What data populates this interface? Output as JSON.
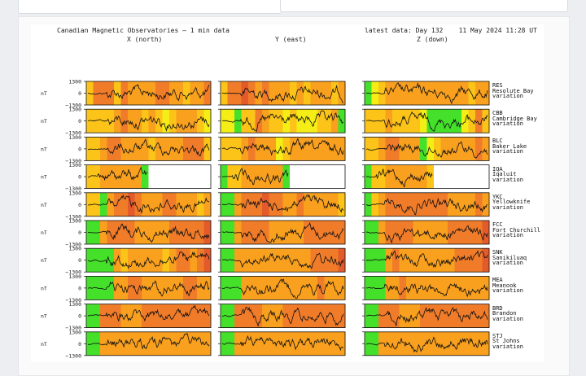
{
  "header": {
    "title": "Canadian Magnetic Observatories – 1 min data",
    "latest": "latest data: Day 132    11 May 2024 11:28 UT"
  },
  "columns": [
    "X (north)",
    "Y (east)",
    "Z (down)"
  ],
  "axis": {
    "unit": "nT",
    "top_tick": "1300",
    "mid_tick": "0",
    "bottom_tick": "−1300"
  },
  "colors": {
    "quiet": "#44e02a",
    "unsettled": "#f4ee16",
    "active": "#fcc418",
    "minor_storm": "#f9a01e",
    "major_storm": "#f07c2a",
    "severe_storm": "#e35b2b",
    "no_data": "#ffffff",
    "trace": "#111111"
  },
  "stations": [
    {
      "code": "RES",
      "name": "Resolute Bay",
      "suffix": "variation"
    },
    {
      "code": "CBB",
      "name": "Cambridge Bay",
      "suffix": "variation"
    },
    {
      "code": "BLC",
      "name": "Baker Lake",
      "suffix": "variation"
    },
    {
      "code": "IQA",
      "name": "Iqaluit",
      "suffix": "variation"
    },
    {
      "code": "YKC",
      "name": "Yellowknife",
      "suffix": "variation"
    },
    {
      "code": "FCC",
      "name": "Fort Churchill",
      "suffix": "variation"
    },
    {
      "code": "SNK",
      "name": "Sanikiluaq",
      "suffix": "variation"
    },
    {
      "code": "MEA",
      "name": "Meanook",
      "suffix": "variation"
    },
    {
      "code": "BRD",
      "name": "Brandon",
      "suffix": "variation"
    },
    {
      "code": "STJ",
      "name": "St Johns",
      "suffix": "variation"
    }
  ],
  "chart_data": {
    "type": "line",
    "title": "Canadian Magnetic Observatories – 1 min data",
    "series_components": [
      "X (north)",
      "Y (east)",
      "Z (down)"
    ],
    "ylabel": "nT",
    "ylim": [
      -1300,
      1300
    ],
    "yticks": [
      1300,
      0,
      -1300
    ],
    "activity_levels": [
      "quiet",
      "unsettled",
      "active",
      "minor_storm",
      "major_storm",
      "severe_storm",
      "no_data"
    ],
    "activity_strips": [
      [
        [
          "active",
          "major_storm",
          "major_storm",
          "major_storm",
          "active",
          "major_storm",
          "minor_storm",
          "minor_storm",
          "minor_storm",
          "minor_storm",
          "major_storm",
          "major_storm",
          "minor_storm",
          "minor_storm",
          "active",
          "minor_storm",
          "minor_storm",
          "major_storm"
        ],
        [
          "active",
          "major_storm",
          "major_storm",
          "severe_storm",
          "major_storm",
          "minor_storm",
          "major_storm",
          "minor_storm",
          "minor_storm",
          "minor_storm",
          "active",
          "minor_storm",
          "active",
          "minor_storm",
          "minor_storm",
          "minor_storm",
          "active",
          "minor_storm"
        ],
        [
          "quiet",
          "unsettled",
          "active",
          "minor_storm",
          "minor_storm",
          "minor_storm",
          "minor_storm",
          "minor_storm",
          "minor_storm",
          "minor_storm",
          "minor_storm",
          "minor_storm",
          "minor_storm",
          "minor_storm",
          "minor_storm",
          "active",
          "minor_storm",
          "minor_storm"
        ]
      ],
      [
        [
          "active",
          "active",
          "active",
          "active",
          "minor_storm",
          "major_storm",
          "minor_storm",
          "minor_storm",
          "active",
          "minor_storm",
          "active",
          "unsettled",
          "active",
          "minor_storm",
          "minor_storm",
          "minor_storm",
          "active",
          "unsettled"
        ],
        [
          "unsettled",
          "unsettled",
          "quiet",
          "active",
          "active",
          "major_storm",
          "minor_storm",
          "active",
          "active",
          "unsettled",
          "active",
          "unsettled",
          "unsettled",
          "unsettled",
          "active",
          "active",
          "minor_storm",
          "quiet"
        ],
        [
          "active",
          "active",
          "active",
          "minor_storm",
          "active",
          "active",
          "active",
          "active",
          "unsettled",
          "quiet",
          "quiet",
          "quiet",
          "quiet",
          "quiet",
          "unsettled",
          "active",
          "major_storm",
          "active"
        ]
      ],
      [
        [
          "active",
          "active",
          "minor_storm",
          "major_storm",
          "major_storm",
          "minor_storm",
          "minor_storm",
          "minor_storm",
          "minor_storm",
          "active",
          "minor_storm",
          "minor_storm",
          "minor_storm",
          "minor_storm",
          "major_storm",
          "major_storm",
          "major_storm",
          "active"
        ],
        [
          "active",
          "active",
          "active",
          "minor_storm",
          "major_storm",
          "minor_storm",
          "minor_storm",
          "minor_storm",
          "unsettled",
          "active",
          "minor_storm",
          "minor_storm",
          "minor_storm",
          "minor_storm",
          "minor_storm",
          "minor_storm",
          "minor_storm",
          "minor_storm"
        ],
        [
          "active",
          "active",
          "minor_storm",
          "major_storm",
          "major_storm",
          "minor_storm",
          "minor_storm",
          "minor_storm",
          "quiet",
          "unsettled",
          "active",
          "minor_storm",
          "minor_storm",
          "minor_storm",
          "minor_storm",
          "minor_storm",
          "major_storm",
          "minor_storm"
        ]
      ],
      [
        [
          "active",
          "active",
          "minor_storm",
          "minor_storm",
          "minor_storm",
          "minor_storm",
          "minor_storm",
          "minor_storm",
          "quiet",
          "no_data",
          "no_data",
          "no_data",
          "no_data",
          "no_data",
          "no_data",
          "no_data",
          "no_data",
          "no_data"
        ],
        [
          "quiet",
          "active",
          "active",
          "minor_storm",
          "minor_storm",
          "minor_storm",
          "minor_storm",
          "minor_storm",
          "minor_storm",
          "quiet",
          "no_data",
          "no_data",
          "no_data",
          "no_data",
          "no_data",
          "no_data",
          "no_data",
          "no_data"
        ],
        [
          "quiet",
          "active",
          "active",
          "minor_storm",
          "minor_storm",
          "minor_storm",
          "minor_storm",
          "minor_storm",
          "minor_storm",
          "active",
          "no_data",
          "no_data",
          "no_data",
          "no_data",
          "no_data",
          "no_data",
          "no_data",
          "no_data"
        ]
      ],
      [
        [
          "active",
          "active",
          "quiet",
          "minor_storm",
          "major_storm",
          "major_storm",
          "severe_storm",
          "major_storm",
          "minor_storm",
          "minor_storm",
          "minor_storm",
          "major_storm",
          "major_storm",
          "minor_storm",
          "minor_storm",
          "minor_storm",
          "active",
          "minor_storm"
        ],
        [
          "quiet",
          "quiet",
          "minor_storm",
          "major_storm",
          "major_storm",
          "major_storm",
          "severe_storm",
          "major_storm",
          "major_storm",
          "minor_storm",
          "minor_storm",
          "major_storm",
          "minor_storm",
          "minor_storm",
          "minor_storm",
          "minor_storm",
          "minor_storm",
          "active"
        ],
        [
          "quiet",
          "active",
          "minor_storm",
          "major_storm",
          "major_storm",
          "major_storm",
          "major_storm",
          "major_storm",
          "major_storm",
          "major_storm",
          "major_storm",
          "major_storm",
          "minor_storm",
          "minor_storm",
          "minor_storm",
          "minor_storm",
          "major_storm",
          "minor_storm"
        ]
      ],
      [
        [
          "quiet",
          "quiet",
          "minor_storm",
          "major_storm",
          "major_storm",
          "major_storm",
          "major_storm",
          "minor_storm",
          "minor_storm",
          "minor_storm",
          "minor_storm",
          "minor_storm",
          "major_storm",
          "major_storm",
          "major_storm",
          "major_storm",
          "major_storm",
          "severe_storm"
        ],
        [
          "quiet",
          "quiet",
          "minor_storm",
          "major_storm",
          "major_storm",
          "major_storm",
          "major_storm",
          "minor_storm",
          "minor_storm",
          "minor_storm",
          "minor_storm",
          "minor_storm",
          "major_storm",
          "major_storm",
          "major_storm",
          "major_storm",
          "major_storm",
          "major_storm"
        ],
        [
          "quiet",
          "quiet",
          "minor_storm",
          "major_storm",
          "major_storm",
          "major_storm",
          "major_storm",
          "minor_storm",
          "minor_storm",
          "minor_storm",
          "minor_storm",
          "minor_storm",
          "major_storm",
          "major_storm",
          "major_storm",
          "major_storm",
          "major_storm",
          "severe_storm"
        ]
      ],
      [
        [
          "quiet",
          "quiet",
          "quiet",
          "quiet",
          "minor_storm",
          "active",
          "minor_storm",
          "minor_storm",
          "minor_storm",
          "minor_storm",
          "minor_storm",
          "active",
          "minor_storm",
          "major_storm",
          "major_storm",
          "minor_storm",
          "major_storm",
          "severe_storm"
        ],
        [
          "quiet",
          "quiet",
          "minor_storm",
          "minor_storm",
          "minor_storm",
          "minor_storm",
          "minor_storm",
          "minor_storm",
          "minor_storm",
          "minor_storm",
          "minor_storm",
          "minor_storm",
          "minor_storm",
          "major_storm",
          "major_storm",
          "major_storm",
          "major_storm",
          "severe_storm"
        ],
        [
          "quiet",
          "quiet",
          "quiet",
          "minor_storm",
          "major_storm",
          "minor_storm",
          "minor_storm",
          "minor_storm",
          "minor_storm",
          "minor_storm",
          "minor_storm",
          "minor_storm",
          "minor_storm",
          "major_storm",
          "major_storm",
          "major_storm",
          "major_storm",
          "severe_storm"
        ]
      ],
      [
        [
          "quiet",
          "quiet",
          "quiet",
          "quiet",
          "minor_storm",
          "minor_storm",
          "major_storm",
          "major_storm",
          "minor_storm",
          "minor_storm",
          "minor_storm",
          "minor_storm",
          "minor_storm",
          "minor_storm",
          "major_storm",
          "major_storm",
          "minor_storm",
          "minor_storm"
        ],
        [
          "quiet",
          "quiet",
          "quiet",
          "minor_storm",
          "minor_storm",
          "minor_storm",
          "minor_storm",
          "minor_storm",
          "minor_storm",
          "minor_storm",
          "minor_storm",
          "minor_storm",
          "minor_storm",
          "minor_storm",
          "major_storm",
          "minor_storm",
          "minor_storm",
          "minor_storm"
        ],
        [
          "quiet",
          "quiet",
          "quiet",
          "minor_storm",
          "minor_storm",
          "major_storm",
          "minor_storm",
          "minor_storm",
          "minor_storm",
          "minor_storm",
          "minor_storm",
          "minor_storm",
          "minor_storm",
          "minor_storm",
          "minor_storm",
          "minor_storm",
          "minor_storm",
          "minor_storm"
        ]
      ],
      [
        [
          "quiet",
          "quiet",
          "major_storm",
          "major_storm",
          "major_storm",
          "minor_storm",
          "minor_storm",
          "minor_storm",
          "major_storm",
          "major_storm",
          "major_storm",
          "major_storm",
          "major_storm",
          "major_storm",
          "major_storm",
          "major_storm",
          "major_storm",
          "major_storm"
        ],
        [
          "quiet",
          "quiet",
          "major_storm",
          "major_storm",
          "major_storm",
          "major_storm",
          "minor_storm",
          "minor_storm",
          "minor_storm",
          "major_storm",
          "major_storm",
          "major_storm",
          "major_storm",
          "major_storm",
          "major_storm",
          "major_storm",
          "major_storm",
          "major_storm"
        ],
        [
          "quiet",
          "quiet",
          "major_storm",
          "major_storm",
          "major_storm",
          "minor_storm",
          "minor_storm",
          "minor_storm",
          "major_storm",
          "major_storm",
          "major_storm",
          "major_storm",
          "major_storm",
          "major_storm",
          "major_storm",
          "major_storm",
          "major_storm",
          "major_storm"
        ]
      ],
      [
        [
          "quiet",
          "quiet",
          "minor_storm",
          "minor_storm",
          "minor_storm",
          "minor_storm",
          "minor_storm",
          "minor_storm",
          "minor_storm",
          "minor_storm",
          "minor_storm",
          "minor_storm",
          "minor_storm",
          "minor_storm",
          "minor_storm",
          "minor_storm",
          "minor_storm",
          "minor_storm"
        ],
        [
          "quiet",
          "quiet",
          "minor_storm",
          "minor_storm",
          "minor_storm",
          "minor_storm",
          "minor_storm",
          "minor_storm",
          "minor_storm",
          "minor_storm",
          "minor_storm",
          "minor_storm",
          "minor_storm",
          "minor_storm",
          "minor_storm",
          "minor_storm",
          "minor_storm",
          "minor_storm"
        ],
        [
          "quiet",
          "quiet",
          "minor_storm",
          "minor_storm",
          "minor_storm",
          "minor_storm",
          "minor_storm",
          "minor_storm",
          "minor_storm",
          "minor_storm",
          "minor_storm",
          "minor_storm",
          "minor_storm",
          "minor_storm",
          "minor_storm",
          "minor_storm",
          "minor_storm",
          "minor_storm"
        ]
      ]
    ]
  }
}
